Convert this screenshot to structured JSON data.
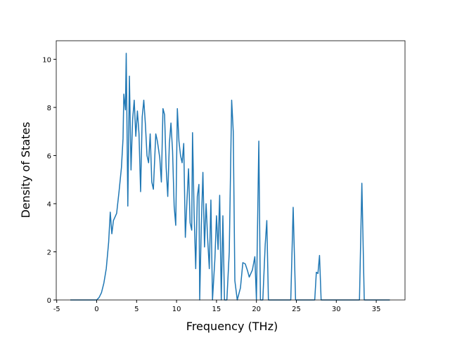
{
  "chart_data": {
    "type": "line",
    "xlabel": "Frequency (THz)",
    "ylabel": "Density of States",
    "x": [
      -3.3,
      0,
      0.3,
      0.6,
      0.9,
      1.2,
      1.5,
      1.7,
      1.9,
      2.1,
      2.5,
      2.8,
      3.1,
      3.3,
      3.4,
      3.6,
      3.7,
      3.9,
      4.1,
      4.3,
      4.5,
      4.7,
      4.9,
      5.1,
      5.3,
      5.5,
      5.7,
      5.9,
      6.1,
      6.3,
      6.5,
      6.7,
      6.9,
      7.1,
      7.4,
      7.6,
      7.9,
      8.1,
      8.3,
      8.5,
      8.7,
      8.9,
      9.1,
      9.3,
      9.5,
      9.7,
      9.9,
      10.1,
      10.3,
      10.5,
      10.7,
      10.9,
      11.1,
      11.3,
      11.5,
      11.7,
      11.9,
      12.0,
      12.2,
      12.4,
      12.6,
      12.8,
      12.9,
      13.1,
      13.3,
      13.5,
      13.7,
      13.9,
      14.1,
      14.3,
      14.5,
      14.8,
      15.0,
      15.2,
      15.4,
      15.6,
      15.8,
      16.0,
      16.3,
      16.6,
      16.9,
      17.1,
      17.3,
      17.6,
      18.0,
      18.3,
      18.6,
      18.9,
      19.1,
      19.5,
      19.8,
      20.0,
      20.3,
      20.5,
      20.8,
      21.1,
      21.3,
      21.5,
      24.3,
      24.6,
      24.9,
      27.3,
      27.5,
      27.7,
      27.9,
      28.1,
      32.9,
      33.2,
      33.5,
      36.7
    ],
    "series": [
      {
        "name": "DOS",
        "color": "#1f77b4",
        "values": [
          0,
          0,
          0.1,
          0.3,
          0.7,
          1.3,
          2.4,
          3.65,
          2.75,
          3.3,
          3.6,
          4.5,
          5.5,
          6.7,
          8.55,
          7.9,
          10.25,
          3.9,
          9.3,
          5.4,
          7.5,
          8.3,
          6.8,
          7.85,
          6.9,
          4.5,
          7.6,
          8.3,
          7.3,
          6.0,
          5.7,
          6.9,
          4.9,
          4.6,
          6.9,
          6.6,
          5.9,
          4.9,
          7.95,
          7.7,
          5.5,
          4.3,
          6.5,
          7.35,
          6.2,
          3.9,
          3.1,
          7.95,
          6.6,
          6.0,
          5.7,
          6.5,
          2.6,
          4.1,
          5.45,
          3.2,
          2.9,
          6.95,
          3.6,
          1.3,
          4.3,
          4.8,
          0,
          3.1,
          5.3,
          2.2,
          4.0,
          2.5,
          1.3,
          4.15,
          0,
          1.7,
          3.5,
          2.1,
          4.35,
          0,
          3.5,
          0,
          0,
          2.0,
          8.3,
          7.0,
          0.8,
          0,
          0.5,
          1.55,
          1.5,
          1.2,
          0.95,
          1.25,
          1.8,
          0,
          6.6,
          0,
          0,
          2.3,
          3.3,
          0,
          0,
          3.85,
          0,
          0,
          1.15,
          1.1,
          1.85,
          0,
          0,
          4.85,
          0,
          0
        ]
      }
    ],
    "xlim": [
      -5.06,
      38.6
    ],
    "ylim": [
      0,
      10.77
    ],
    "xticks": [
      -5,
      0,
      5,
      10,
      15,
      20,
      25,
      30,
      35
    ],
    "yticks": [
      0,
      2,
      4,
      6,
      8,
      10
    ]
  }
}
